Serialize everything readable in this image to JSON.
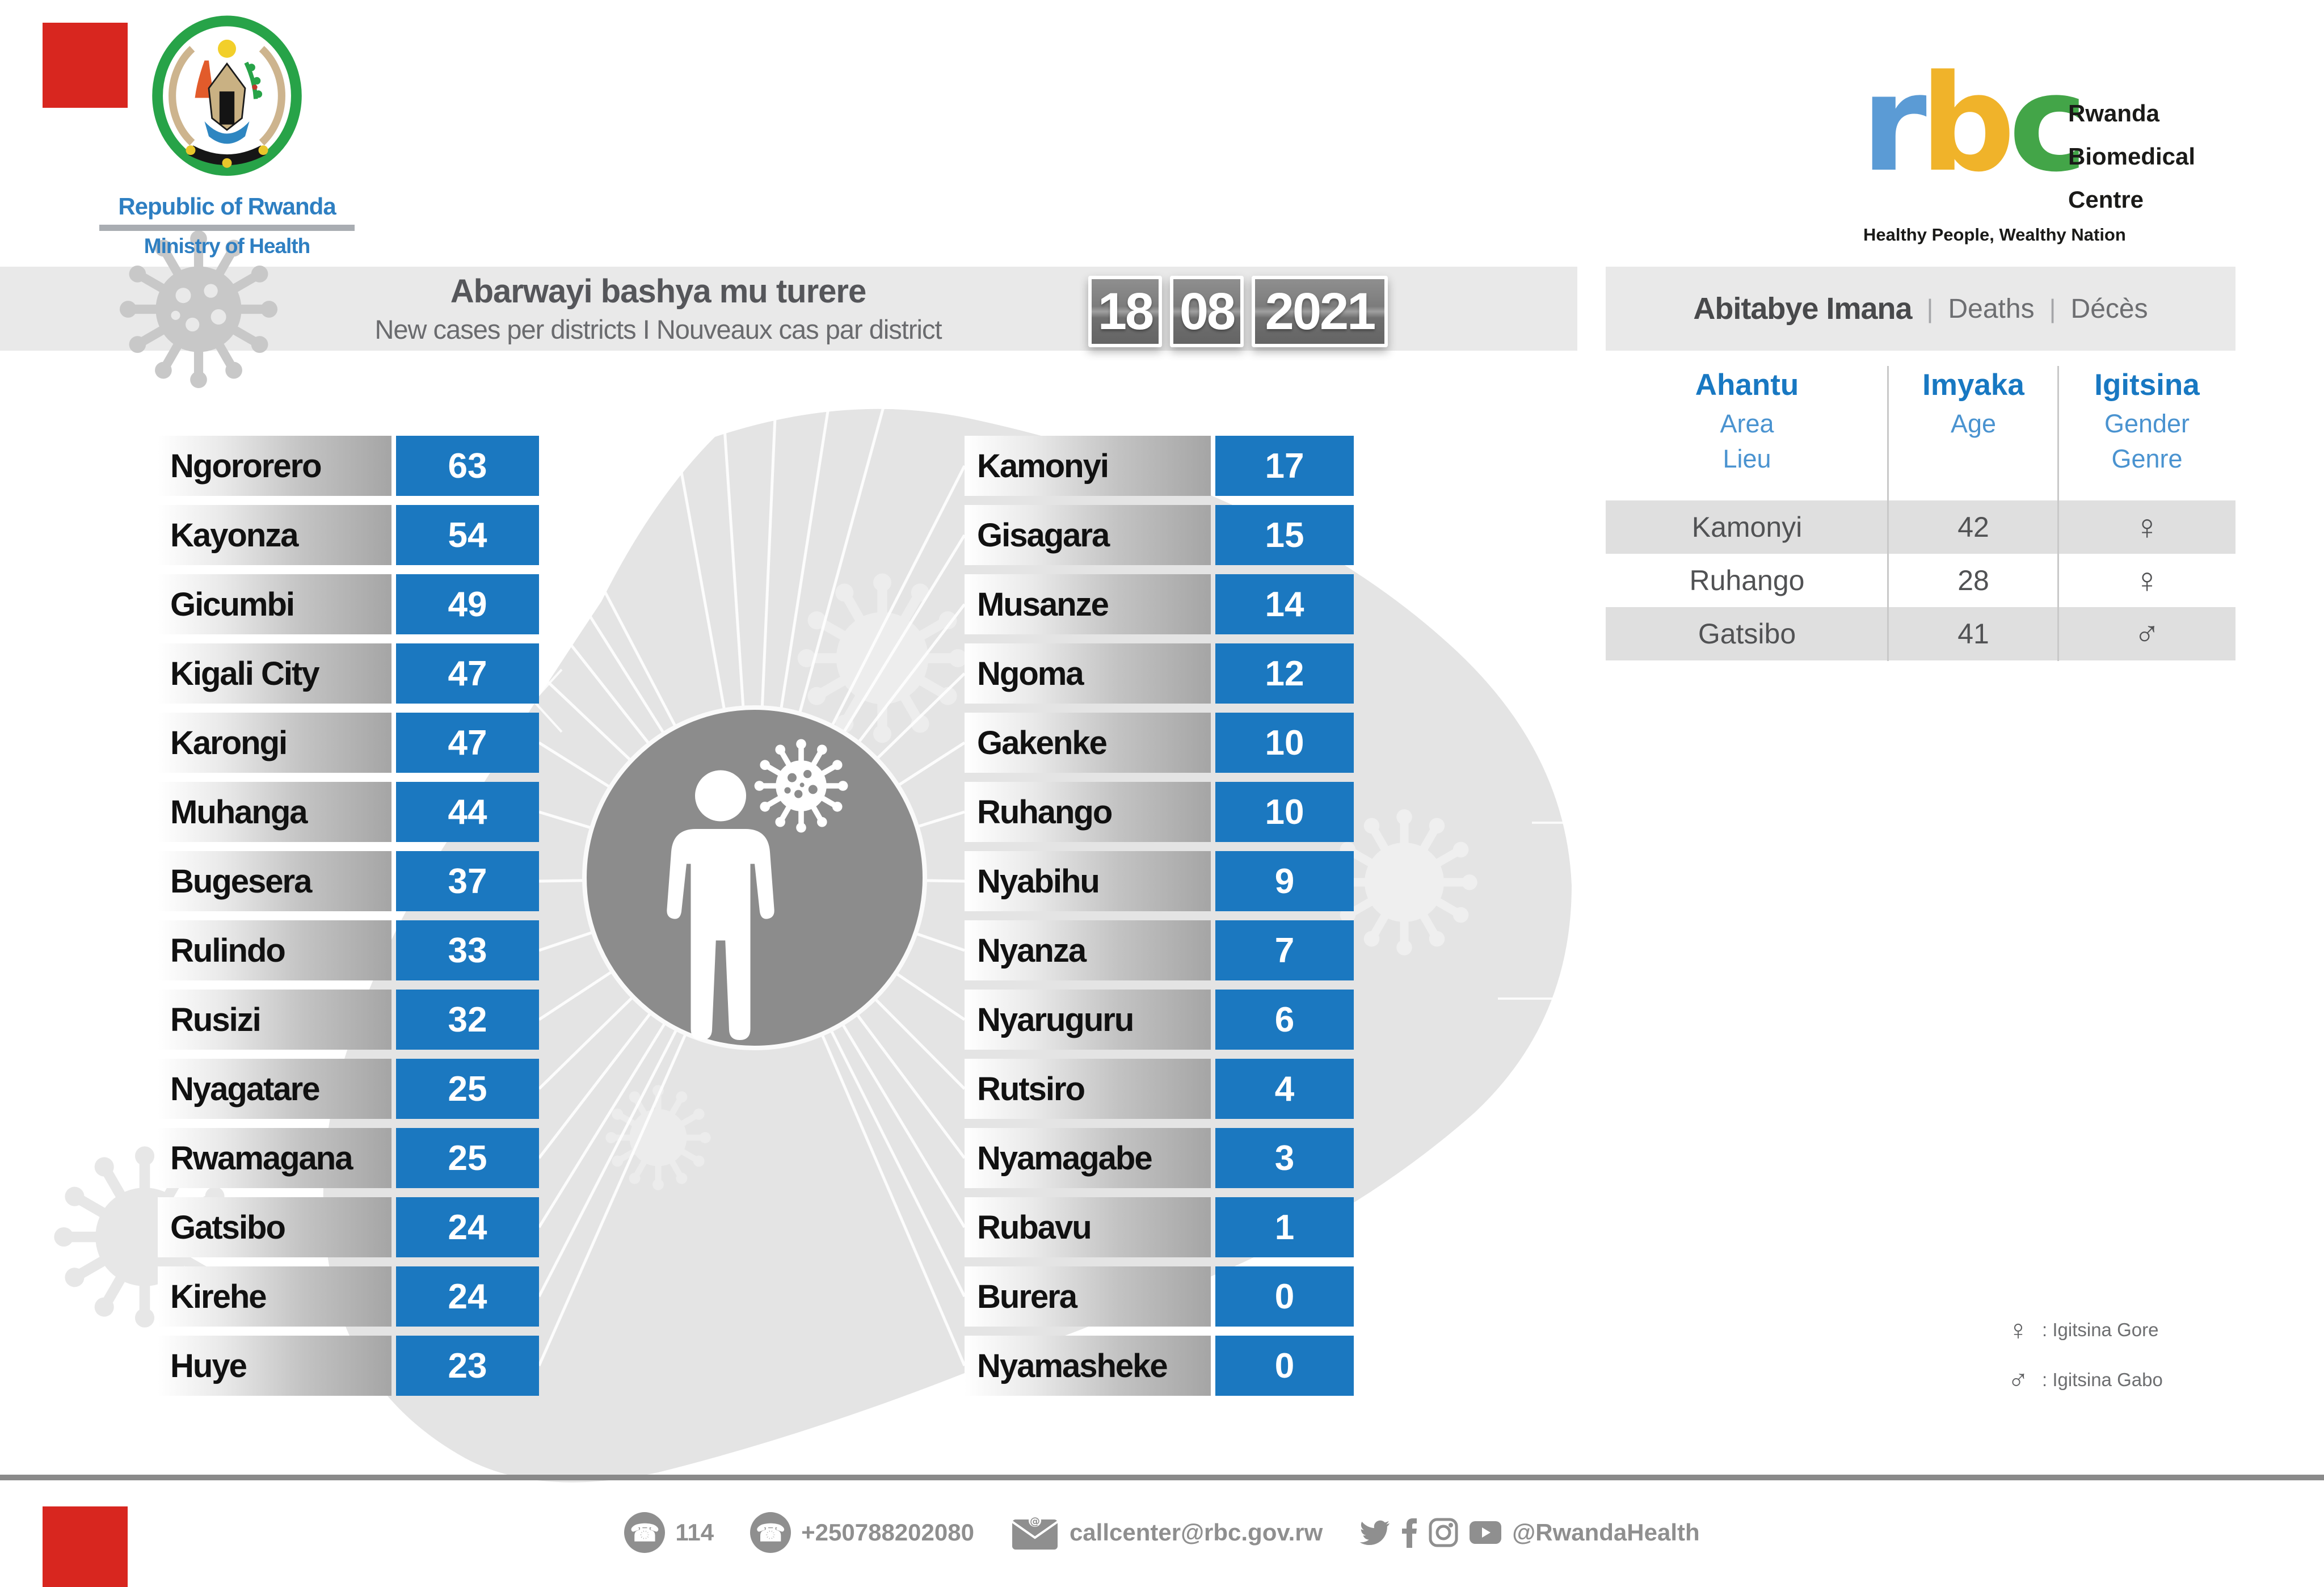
{
  "accents": {
    "corner_red": "#d8261f",
    "bottom_bar_gray": "#8a8a8a",
    "bar_blue": "#1b78c0"
  },
  "ministry_logo": {
    "title": "Republic of Rwanda",
    "subtitle": "Ministry of Health"
  },
  "rbc_logo": {
    "letters": [
      "r",
      "b",
      "c"
    ],
    "letter_colors": [
      "#5b9bd5",
      "#f0b32a",
      "#43a548"
    ],
    "name_lines": [
      "Rwanda",
      "Biomedical",
      "Centre"
    ],
    "tagline": "Healthy People, Wealthy Nation"
  },
  "header": {
    "title": "Abarwayi bashya mu turere",
    "subtitle": "New cases per districts  I  Nouveaux cas par district"
  },
  "date": {
    "day": "18",
    "month": "08",
    "year": "2021"
  },
  "icons": {
    "phone": "☎",
    "female": "♀",
    "male": "♂"
  },
  "cases": {
    "left": [
      {
        "district": "Ngororero",
        "value": "63"
      },
      {
        "district": "Kayonza",
        "value": "54"
      },
      {
        "district": "Gicumbi",
        "value": "49"
      },
      {
        "district": "Kigali City",
        "value": "47"
      },
      {
        "district": "Karongi",
        "value": "47"
      },
      {
        "district": "Muhanga",
        "value": "44"
      },
      {
        "district": "Bugesera",
        "value": "37"
      },
      {
        "district": "Rulindo",
        "value": "33"
      },
      {
        "district": "Rusizi",
        "value": "32"
      },
      {
        "district": "Nyagatare",
        "value": "25"
      },
      {
        "district": "Rwamagana",
        "value": "25"
      },
      {
        "district": "Gatsibo",
        "value": "24"
      },
      {
        "district": "Kirehe",
        "value": "24"
      },
      {
        "district": "Huye",
        "value": "23"
      }
    ],
    "right": [
      {
        "district": "Kamonyi",
        "value": "17"
      },
      {
        "district": "Gisagara",
        "value": "15"
      },
      {
        "district": "Musanze",
        "value": "14"
      },
      {
        "district": "Ngoma",
        "value": "12"
      },
      {
        "district": "Gakenke",
        "value": "10"
      },
      {
        "district": "Ruhango",
        "value": "10"
      },
      {
        "district": "Nyabihu",
        "value": "9"
      },
      {
        "district": "Nyanza",
        "value": "7"
      },
      {
        "district": "Nyaruguru",
        "value": "6"
      },
      {
        "district": "Rutsiro",
        "value": "4"
      },
      {
        "district": "Nyamagabe",
        "value": "3"
      },
      {
        "district": "Rubavu",
        "value": "1"
      },
      {
        "district": "Burera",
        "value": "0"
      },
      {
        "district": "Nyamasheke",
        "value": "0"
      }
    ]
  },
  "deaths_table": {
    "title_rw": "Abitabye Imana",
    "title_en": "Deaths",
    "title_fr": "Décès",
    "sep": "|",
    "columns": [
      {
        "lines": [
          "Ahantu",
          "Area",
          "Lieu"
        ]
      },
      {
        "lines": [
          "Imyaka",
          "Age",
          ""
        ]
      },
      {
        "lines": [
          "Igitsina",
          "Gender",
          "Genre"
        ]
      }
    ],
    "rows": [
      {
        "area": "Kamonyi",
        "age": "42",
        "gender": "♀"
      },
      {
        "area": "Ruhango",
        "age": "28",
        "gender": "♀"
      },
      {
        "area": "Gatsibo",
        "age": "41",
        "gender": "♂"
      }
    ]
  },
  "legend": {
    "items": [
      {
        "symbol": "♀",
        "label": ": Igitsina Gore"
      },
      {
        "symbol": "♂",
        "label": ": Igitsina Gabo"
      }
    ]
  },
  "footer": {
    "hotline": "114",
    "phone": "+250788202080",
    "email": "callcenter@rbc.gov.rw",
    "handle": "@RwandaHealth"
  },
  "chart_data": {
    "type": "bar",
    "title": "Abarwayi bashya mu turere | New cases per districts | Nouveaux cas par district",
    "date": "18/08/2021",
    "bar_color": "#1b78c0",
    "categories": [
      "Ngororero",
      "Kayonza",
      "Gicumbi",
      "Kigali City",
      "Karongi",
      "Muhanga",
      "Bugesera",
      "Rulindo",
      "Rusizi",
      "Nyagatare",
      "Rwamagana",
      "Gatsibo",
      "Kirehe",
      "Huye",
      "Kamonyi",
      "Gisagara",
      "Musanze",
      "Ngoma",
      "Gakenke",
      "Ruhango",
      "Nyabihu",
      "Nyanza",
      "Nyaruguru",
      "Rutsiro",
      "Nyamagabe",
      "Rubavu",
      "Burera",
      "Nyamasheke"
    ],
    "values": [
      63,
      54,
      49,
      47,
      47,
      44,
      37,
      33,
      32,
      25,
      25,
      24,
      24,
      23,
      17,
      15,
      14,
      12,
      10,
      10,
      9,
      7,
      6,
      4,
      3,
      1,
      0,
      0
    ],
    "deaths": [
      {
        "area": "Kamonyi",
        "age": 42,
        "gender": "female"
      },
      {
        "area": "Ruhango",
        "age": 28,
        "gender": "female"
      },
      {
        "area": "Gatsibo",
        "age": 41,
        "gender": "male"
      }
    ]
  }
}
